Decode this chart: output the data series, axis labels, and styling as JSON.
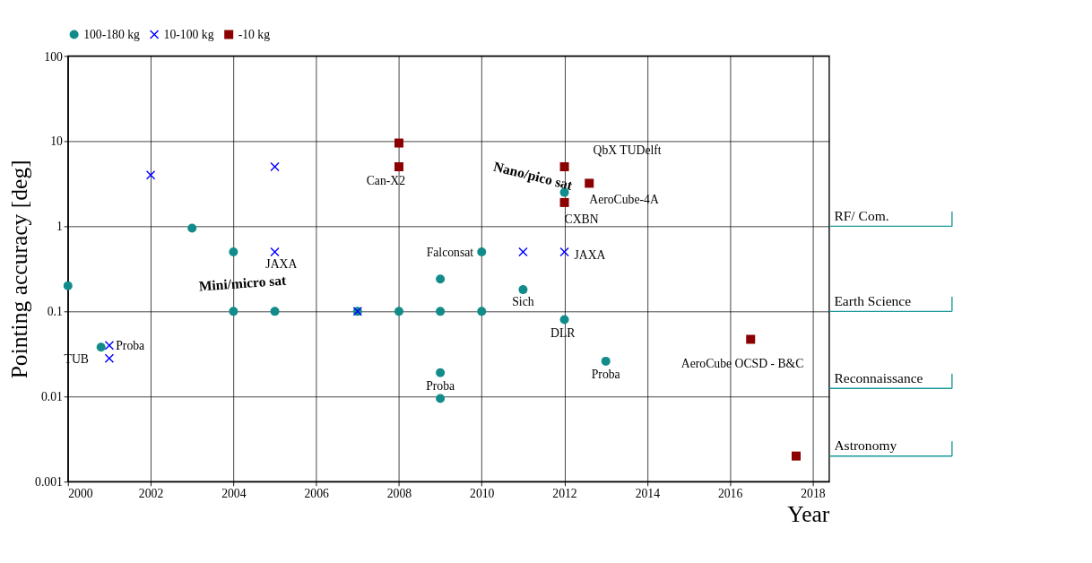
{
  "chart_data": {
    "type": "scatter",
    "xlabel": "Year",
    "ylabel": "Pointing accuracy [deg]",
    "xlim": [
      2000,
      2018.4
    ],
    "xticks": [
      2000,
      2002,
      2004,
      2006,
      2008,
      2010,
      2012,
      2014,
      2016,
      2018
    ],
    "ylim": [
      0.001,
      100
    ],
    "yticks": [
      0.001,
      0.01,
      0.1,
      1,
      10,
      100
    ],
    "log": "y",
    "grid": true,
    "legend": "top",
    "series": [
      {
        "name": "100-180 kg",
        "color": "#128c8a",
        "marker": "circle",
        "x": [
          2000,
          2000.8,
          2003,
          2004,
          2004,
          2005,
          2007,
          2008,
          2009,
          2009,
          2009,
          2009,
          2010,
          2010,
          2011,
          2012,
          2012,
          2013
        ],
        "values": [
          0.2,
          0.038,
          0.95,
          0.5,
          0.1,
          0.1,
          0.1,
          0.1,
          0.24,
          0.1,
          0.019,
          0.0095,
          0.5,
          0.1,
          0.18,
          2.5,
          0.08,
          0.026
        ]
      },
      {
        "name": "10-100 kg",
        "color": "#0000ff",
        "marker": "cross",
        "x": [
          2001,
          2001,
          2002,
          2005,
          2005,
          2007,
          2011,
          2012
        ],
        "values": [
          0.04,
          0.028,
          4,
          5,
          0.5,
          0.1,
          0.5,
          0.5
        ]
      },
      {
        "name": "-10 kg",
        "color": "#8b0000",
        "marker": "square",
        "x": [
          2008,
          2008,
          2012,
          2012.6,
          2012,
          2016.5,
          2017.6
        ],
        "values": [
          9.5,
          5,
          5,
          3.2,
          1.9,
          0.047,
          0.002
        ]
      }
    ],
    "annotations": [
      {
        "text": "TUB",
        "x": 2000.8,
        "y": 0.038
      },
      {
        "text": "Proba",
        "x": 2001,
        "y": 0.04
      },
      {
        "text": "JAXA",
        "x": 2005,
        "y": 0.5
      },
      {
        "text": "Can-X2",
        "x": 2008,
        "y": 5
      },
      {
        "text": "Falconsat",
        "x": 2010,
        "y": 0.5
      },
      {
        "text": "Sich",
        "x": 2011,
        "y": 0.18
      },
      {
        "text": "JAXA",
        "x": 2012,
        "y": 0.5
      },
      {
        "text": "DLR",
        "x": 2012,
        "y": 0.08
      },
      {
        "text": "Proba",
        "x": 2009,
        "y": 0.019
      },
      {
        "text": "Proba",
        "x": 2013,
        "y": 0.026
      },
      {
        "text": "QbX TUDelft",
        "x": 2012,
        "y": 5
      },
      {
        "text": "AeroCube-4A",
        "x": 2012.6,
        "y": 3.2
      },
      {
        "text": "CXBN",
        "x": 2012,
        "y": 1.9
      },
      {
        "text": "AeroCube OCSD - B&C",
        "x": 2016.5,
        "y": 0.047
      },
      "Mini/micro sat",
      "Nano/pico sat",
      "RF/ Com.",
      "Earth Science",
      "Reconnaissance",
      "Astronomy"
    ]
  }
}
